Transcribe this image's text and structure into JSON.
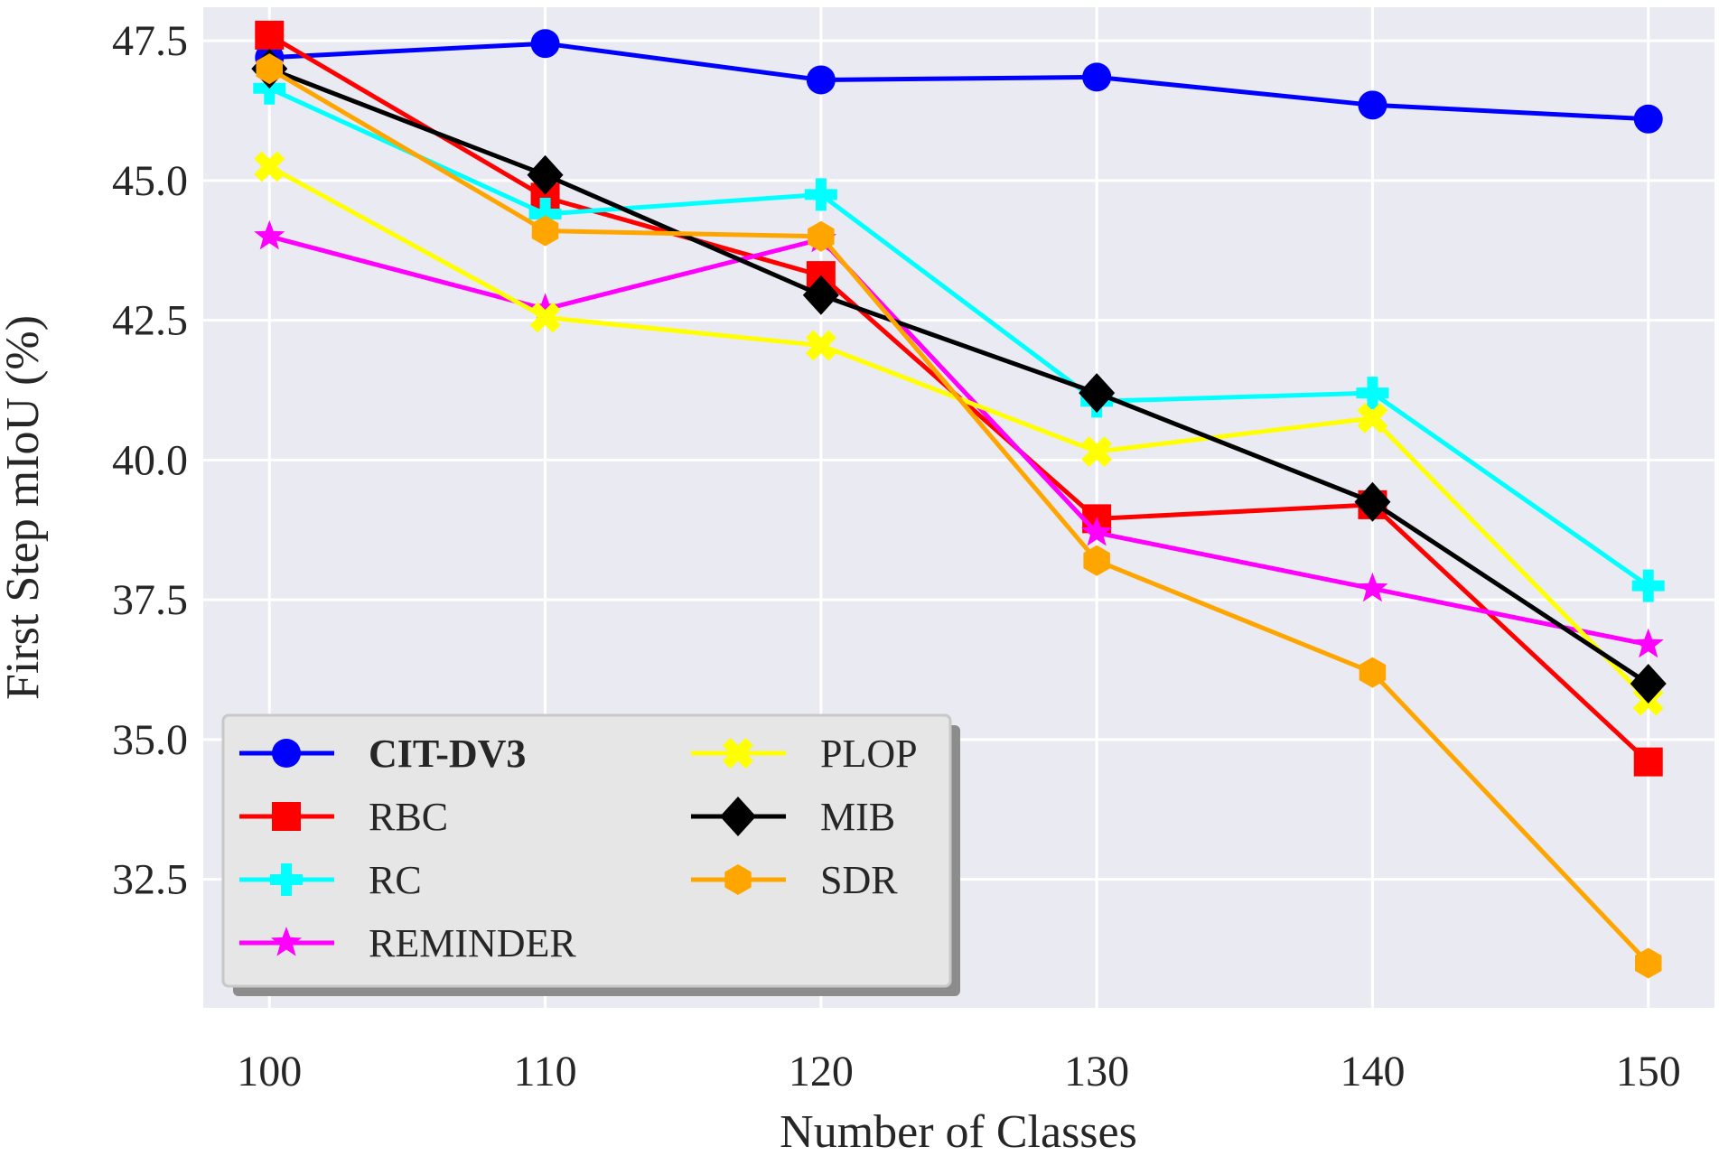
{
  "chart_data": {
    "type": "line",
    "title": "",
    "xlabel": "Number of Classes",
    "ylabel": "First Step mIoU (%)",
    "x": [
      100,
      110,
      120,
      130,
      140,
      150
    ],
    "x_ticks": [
      "100",
      "110",
      "120",
      "130",
      "140",
      "150"
    ],
    "xlim": [
      97.6,
      152.4
    ],
    "ylim": [
      30.2,
      48.1
    ],
    "y_ticks": [
      "32.5",
      "35.0",
      "37.5",
      "40.0",
      "42.5",
      "45.0",
      "47.5"
    ],
    "y_tick_values": [
      32.5,
      35.0,
      37.5,
      40.0,
      42.5,
      45.0,
      47.5
    ],
    "grid": true,
    "legend_position": "lower-left",
    "legend_columns": 2,
    "series": [
      {
        "name": "CIT-DV3",
        "bold": true,
        "color": "#0000ff",
        "marker": "circle",
        "values": [
          47.2,
          47.45,
          46.8,
          46.85,
          46.35,
          46.1
        ]
      },
      {
        "name": "RBC",
        "color": "#ff0000",
        "marker": "square",
        "values": [
          47.6,
          44.7,
          43.3,
          38.95,
          39.2,
          34.6
        ]
      },
      {
        "name": "RC",
        "color": "#00ffff",
        "marker": "plus",
        "values": [
          46.65,
          44.4,
          44.75,
          41.05,
          41.2,
          37.75
        ]
      },
      {
        "name": "REMINDER",
        "color": "#ff00ff",
        "marker": "star",
        "values": [
          44.0,
          42.7,
          43.95,
          38.7,
          37.7,
          36.7
        ]
      },
      {
        "name": "PLOP",
        "color": "#ffff00",
        "marker": "x",
        "values": [
          45.25,
          42.55,
          42.05,
          40.15,
          40.75,
          35.7
        ]
      },
      {
        "name": "MIB",
        "color": "#000000",
        "marker": "diamond",
        "values": [
          47.0,
          45.1,
          42.95,
          41.2,
          39.25,
          36.0
        ]
      },
      {
        "name": "SDR",
        "color": "#ffa500",
        "marker": "hexagon",
        "values": [
          47.0,
          44.1,
          44.0,
          38.2,
          36.2,
          31.0
        ]
      }
    ]
  }
}
